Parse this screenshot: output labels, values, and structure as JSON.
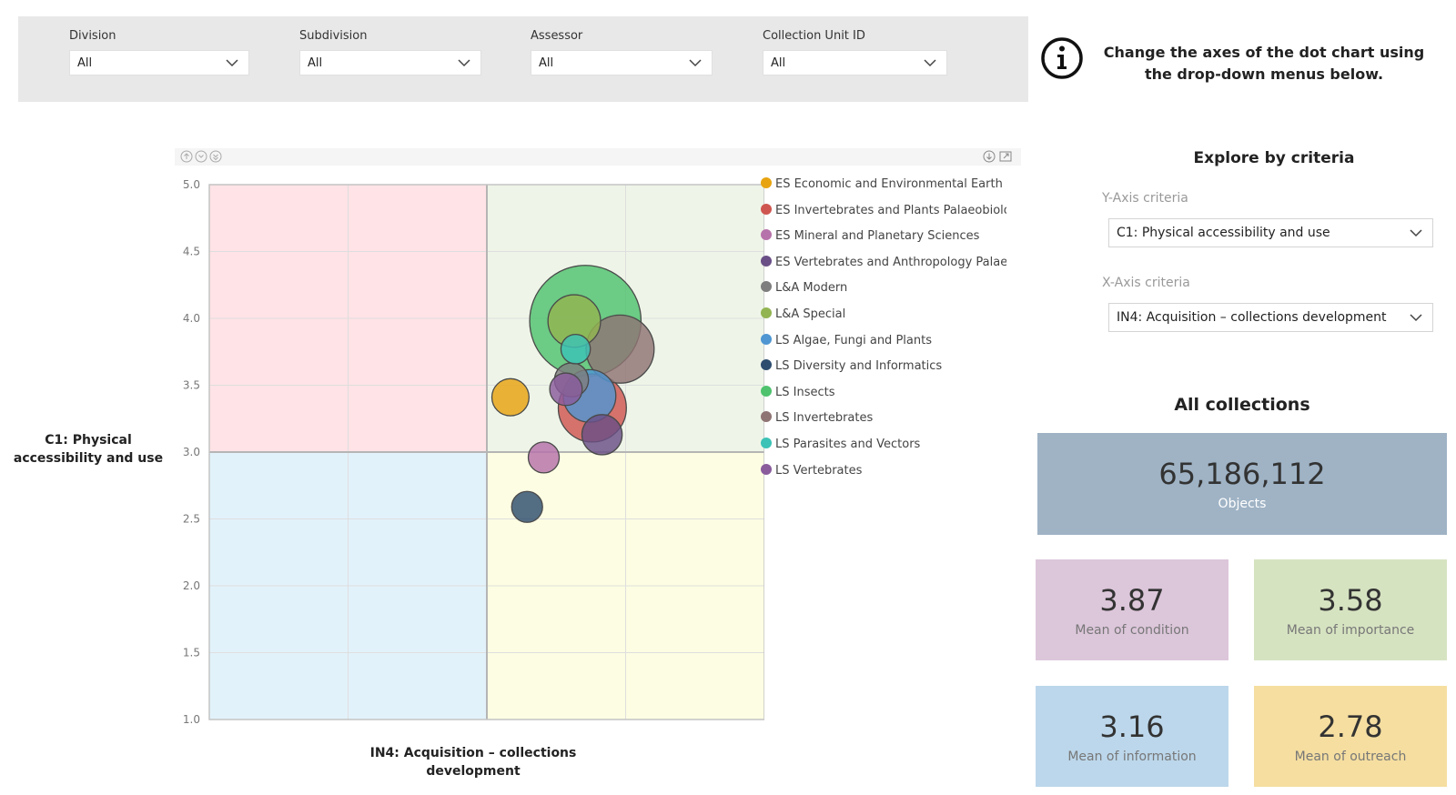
{
  "filters": [
    {
      "label": "Division",
      "value": "All"
    },
    {
      "label": "Subdivision",
      "value": "All"
    },
    {
      "label": "Assessor",
      "value": "All"
    },
    {
      "label": "Collection Unit ID",
      "value": "All"
    }
  ],
  "info": {
    "text": "Change the axes of the dot chart using the drop-down menus below."
  },
  "explore": {
    "title": "Explore by criteria",
    "y_label": "Y-Axis criteria",
    "y_value": "C1: Physical accessibility and use",
    "x_label": "X-Axis criteria",
    "x_value": "IN4: Acquisition – collections development"
  },
  "summary": {
    "title": "All collections",
    "objects": {
      "value": "65,186,112",
      "label": "Objects",
      "color": "#9fb3c5"
    },
    "cards": [
      {
        "value": "3.87",
        "label": "Mean of condition",
        "color": "#dcc6da"
      },
      {
        "value": "3.58",
        "label": "Mean of importance",
        "color": "#d6e3c1"
      },
      {
        "value": "3.16",
        "label": "Mean of information",
        "color": "#bcd7eb"
      },
      {
        "value": "2.78",
        "label": "Mean of outreach",
        "color": "#f5dea0"
      }
    ]
  },
  "chart_data": {
    "type": "scatter",
    "xlabel": "IN4: Acquisition – collections development",
    "ylabel": "C1: Physical accessibility and use",
    "xlim": [
      1,
      5
    ],
    "ylim": [
      1,
      5
    ],
    "x_ticks": [
      "1.0",
      "2.0",
      "3.0",
      "4.0",
      "5.0"
    ],
    "y_ticks": [
      "5.0",
      "4.5",
      "4.0",
      "3.5",
      "3.0",
      "2.5",
      "2.0",
      "1.5",
      "1.0"
    ],
    "grid": true,
    "legend_position": "right",
    "quadrants": [
      {
        "name": "top-left",
        "color": "#ffe3e6"
      },
      {
        "name": "top-right",
        "color": "#eef5e8"
      },
      {
        "name": "bottom-left",
        "color": "#e2f2fb"
      },
      {
        "name": "bottom-right",
        "color": "#fdfde3"
      }
    ],
    "series": [
      {
        "name": "ES Economic and Environmental Earth S...",
        "color": "#e8a410",
        "x": 3.17,
        "y": 3.41,
        "size": 1.2
      },
      {
        "name": "ES Invertebrates and Plants Palaeobiolo...",
        "color": "#cf5650",
        "x": 3.76,
        "y": 3.33,
        "size": 2.2
      },
      {
        "name": "ES Mineral and Planetary Sciences",
        "color": "#b672aa",
        "x": 3.41,
        "y": 2.96,
        "size": 1.0
      },
      {
        "name": "ES Vertebrates and Anthropology Palae...",
        "color": "#6a4f86",
        "x": 3.83,
        "y": 3.13,
        "size": 1.3
      },
      {
        "name": "L&A Modern",
        "color": "#7e7e7e",
        "x": 3.61,
        "y": 3.54,
        "size": 1.1
      },
      {
        "name": "L&A Special",
        "color": "#92b451",
        "x": 3.63,
        "y": 3.98,
        "size": 1.7
      },
      {
        "name": "LS Algae, Fungi and Plants",
        "color": "#4f96d2",
        "x": 3.74,
        "y": 3.42,
        "size": 1.7
      },
      {
        "name": "LS Diversity and Informatics",
        "color": "#2d4d6e",
        "x": 3.29,
        "y": 2.59,
        "size": 1.0
      },
      {
        "name": "LS Insects",
        "color": "#4fc26e",
        "x": 3.71,
        "y": 3.98,
        "size": 3.6
      },
      {
        "name": "LS Invertebrates",
        "color": "#8f7474",
        "x": 3.96,
        "y": 3.77,
        "size": 2.2
      },
      {
        "name": "LS Parasites and Vectors",
        "color": "#3cc2b6",
        "x": 3.64,
        "y": 3.77,
        "size": 0.95
      },
      {
        "name": "LS Vertebrates",
        "color": "#8a5c9c",
        "x": 3.57,
        "y": 3.47,
        "size": 1.05
      }
    ]
  }
}
